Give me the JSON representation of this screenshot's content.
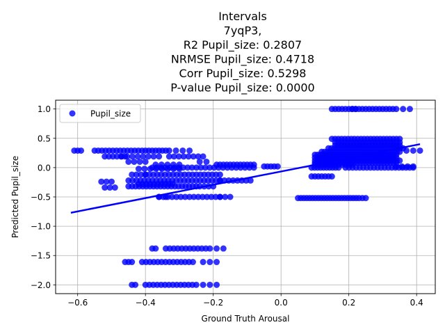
{
  "chart_data": {
    "type": "scatter",
    "title_lines": [
      "Intervals",
      "7yqP3,",
      "R2 Pupil_size: 0.2807",
      "NRMSE Pupil_size: 0.4718",
      "Corr Pupil_size: 0.5298",
      "P-value Pupil_size: 0.0000"
    ],
    "xlabel": "Ground Truth Arousal",
    "ylabel": "Predicted Pupil_size",
    "xlim": [
      -0.665,
      0.455
    ],
    "ylim": [
      -2.15,
      1.15
    ],
    "xticks": [
      -0.6,
      -0.4,
      -0.2,
      0.0,
      0.2,
      0.4
    ],
    "xtick_labels": [
      "−0.6",
      "−0.4",
      "−0.2",
      "0.0",
      "0.2",
      "0.4"
    ],
    "yticks": [
      1.0,
      0.5,
      0.0,
      -0.5,
      -1.0,
      -1.5,
      -2.0
    ],
    "ytick_labels": [
      "1.0",
      "0.5",
      "0.0",
      "−0.5",
      "−1.0",
      "−1.5",
      "−2.0"
    ],
    "grid": true,
    "legend_position": "top-left",
    "series": [
      {
        "name": "Pupil_size",
        "color": "#0000ff",
        "point_groups": [
          {
            "x_from": -0.61,
            "x_to": -0.59,
            "y": 0.29,
            "n": 3
          },
          {
            "x_from": -0.55,
            "x_to": -0.41,
            "y": 0.29,
            "n": 14
          },
          {
            "x_from": -0.4,
            "x_to": -0.34,
            "y": 0.29,
            "n": 7
          },
          {
            "x_from": -0.33,
            "x_to": -0.27,
            "y": 0.29,
            "n": 4
          },
          {
            "x_from": -0.52,
            "x_to": -0.46,
            "y": 0.19,
            "n": 6
          },
          {
            "x_from": -0.47,
            "x_to": -0.36,
            "y": 0.19,
            "n": 8
          },
          {
            "x_from": -0.33,
            "x_to": -0.23,
            "y": 0.19,
            "n": 8
          },
          {
            "x_from": -0.24,
            "x_to": -0.22,
            "y": 0.1,
            "n": 2
          },
          {
            "x_from": -0.45,
            "x_to": -0.4,
            "y": 0.1,
            "n": 4
          },
          {
            "x_from": -0.37,
            "x_to": -0.3,
            "y": 0.05,
            "n": 5
          },
          {
            "x_from": -0.19,
            "x_to": -0.08,
            "y": 0.05,
            "n": 12
          },
          {
            "x_from": -0.05,
            "x_to": -0.01,
            "y": 0.02,
            "n": 5
          },
          {
            "x_from": -0.38,
            "x_to": -0.08,
            "y": 0.0,
            "n": 24
          },
          {
            "x_from": -0.42,
            "x_to": -0.3,
            "y": -0.02,
            "n": 8
          },
          {
            "x_from": -0.44,
            "x_to": -0.4,
            "y": -0.12,
            "n": 4
          },
          {
            "x_from": -0.4,
            "x_to": -0.18,
            "y": -0.12,
            "n": 20
          },
          {
            "x_from": -0.53,
            "x_to": -0.5,
            "y": -0.24,
            "n": 3
          },
          {
            "x_from": -0.45,
            "x_to": -0.18,
            "y": -0.22,
            "n": 24
          },
          {
            "x_from": -0.18,
            "x_to": -0.09,
            "y": -0.22,
            "n": 8
          },
          {
            "x_from": -0.52,
            "x_to": -0.49,
            "y": -0.34,
            "n": 3
          },
          {
            "x_from": -0.45,
            "x_to": -0.25,
            "y": -0.32,
            "n": 20
          },
          {
            "x_from": -0.42,
            "x_to": -0.32,
            "y": -0.28,
            "n": 10
          },
          {
            "x_from": -0.24,
            "x_to": -0.2,
            "y": -0.32,
            "n": 4
          },
          {
            "x_from": -0.36,
            "x_to": -0.18,
            "y": -0.5,
            "n": 15
          },
          {
            "x_from": -0.18,
            "x_to": -0.15,
            "y": -0.5,
            "n": 3
          },
          {
            "x_from": -0.36,
            "x_to": -0.34,
            "y": -0.5,
            "n": 2
          },
          {
            "x_from": -0.38,
            "x_to": -0.37,
            "y": -1.38,
            "n": 2
          },
          {
            "x_from": -0.34,
            "x_to": -0.21,
            "y": -1.38,
            "n": 12
          },
          {
            "x_from": -0.19,
            "x_to": -0.17,
            "y": -1.38,
            "n": 2
          },
          {
            "x_from": -0.46,
            "x_to": -0.44,
            "y": -1.61,
            "n": 3
          },
          {
            "x_from": -0.41,
            "x_to": -0.26,
            "y": -1.61,
            "n": 14
          },
          {
            "x_from": -0.23,
            "x_to": -0.19,
            "y": -1.61,
            "n": 3
          },
          {
            "x_from": -0.44,
            "x_to": -0.43,
            "y": -2.0,
            "n": 2
          },
          {
            "x_from": -0.4,
            "x_to": -0.25,
            "y": -2.0,
            "n": 14
          },
          {
            "x_from": -0.23,
            "x_to": -0.19,
            "y": -2.0,
            "n": 3
          },
          {
            "x_from": 0.05,
            "x_to": 0.23,
            "y": -0.52,
            "n": 22
          },
          {
            "x_from": 0.24,
            "x_to": 0.25,
            "y": -0.52,
            "n": 2
          },
          {
            "x_from": 0.09,
            "x_to": 0.15,
            "y": -0.15,
            "n": 7
          },
          {
            "x_from": 0.09,
            "x_to": 0.17,
            "y": 0.0,
            "n": 10
          },
          {
            "x_from": 0.1,
            "x_to": 0.21,
            "y": 0.05,
            "n": 12
          },
          {
            "x_from": 0.19,
            "x_to": 0.39,
            "y": 0.0,
            "n": 20
          },
          {
            "x_from": 0.1,
            "x_to": 0.34,
            "y": 0.08,
            "n": 28
          },
          {
            "x_from": 0.1,
            "x_to": 0.35,
            "y": 0.12,
            "n": 30
          },
          {
            "x_from": 0.1,
            "x_to": 0.34,
            "y": 0.17,
            "n": 30
          },
          {
            "x_from": 0.1,
            "x_to": 0.34,
            "y": 0.22,
            "n": 30
          },
          {
            "x_from": 0.12,
            "x_to": 0.35,
            "y": 0.27,
            "n": 28
          },
          {
            "x_from": 0.14,
            "x_to": 0.36,
            "y": 0.33,
            "n": 26
          },
          {
            "x_from": 0.16,
            "x_to": 0.35,
            "y": 0.38,
            "n": 22
          },
          {
            "x_from": 0.16,
            "x_to": 0.35,
            "y": 0.43,
            "n": 22
          },
          {
            "x_from": 0.15,
            "x_to": 0.35,
            "y": 0.49,
            "n": 22
          },
          {
            "x_from": 0.37,
            "x_to": 0.41,
            "y": 0.29,
            "n": 3
          },
          {
            "x_from": 0.34,
            "x_to": 0.39,
            "y": 0.02,
            "n": 4
          },
          {
            "x_from": 0.15,
            "x_to": 0.22,
            "y": 1.0,
            "n": 8
          },
          {
            "x_from": 0.21,
            "x_to": 0.34,
            "y": 1.0,
            "n": 14
          },
          {
            "x_from": 0.36,
            "x_to": 0.38,
            "y": 1.0,
            "n": 2
          }
        ]
      }
    ],
    "regression_line": {
      "x": [
        -0.62,
        0.41
      ],
      "y": [
        -0.77,
        0.4
      ]
    }
  }
}
